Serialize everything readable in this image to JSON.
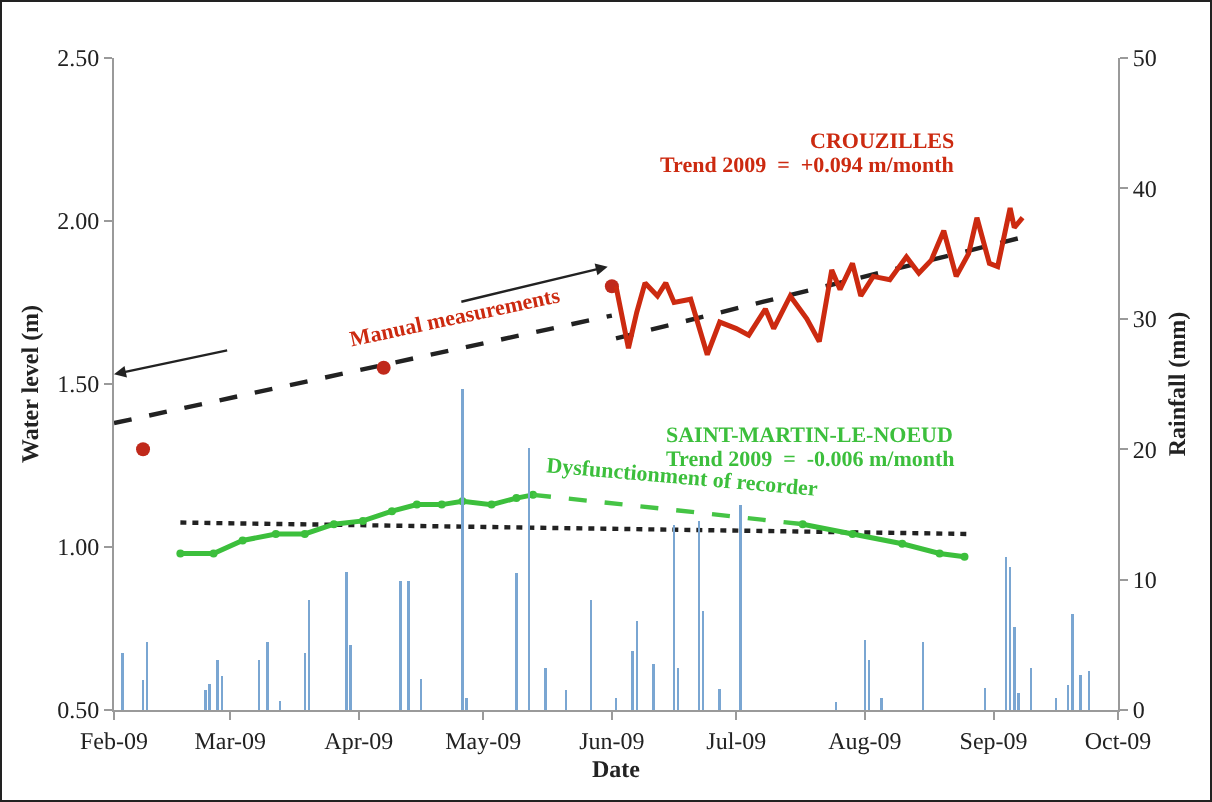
{
  "chart_data": {
    "type": "line",
    "xlabel": "Date",
    "ylabel": "Water level (m)",
    "y2label": "Rainfall (mm)",
    "xlim": [
      "2009-02-01",
      "2009-10-01"
    ],
    "xticks": [
      {
        "value": "2009-02-01",
        "label": "Feb-09"
      },
      {
        "value": "2009-03-01",
        "label": "Mar-09"
      },
      {
        "value": "2009-04-01",
        "label": "Apr-09"
      },
      {
        "value": "2009-05-01",
        "label": "May-09"
      },
      {
        "value": "2009-06-01",
        "label": "Jun-09"
      },
      {
        "value": "2009-07-01",
        "label": "Jul-09"
      },
      {
        "value": "2009-08-01",
        "label": "Aug-09"
      },
      {
        "value": "2009-09-01",
        "label": "Sep-09"
      },
      {
        "value": "2009-10-01",
        "label": "Oct-09"
      }
    ],
    "ylim": [
      0.5,
      2.5
    ],
    "yticks": [
      {
        "value": 0.5,
        "label": "0.50"
      },
      {
        "value": 1,
        "label": "1.00"
      },
      {
        "value": 1.5,
        "label": "1.50"
      },
      {
        "value": 2,
        "label": "2.00"
      },
      {
        "value": 2.5,
        "label": "2.50"
      }
    ],
    "y2lim": [
      0,
      50
    ],
    "y2ticks": [
      0,
      10,
      20,
      30,
      40,
      50
    ],
    "grid": false,
    "legend": false,
    "annotations": [
      "Manual measurements",
      "Dysfunctionment of recorder",
      "Trend 2009  =  +0.094 m/month",
      "Trend 2009  =  -0.006 m/month"
    ],
    "series": [
      {
        "type": "bar",
        "axis": "y2",
        "color": "#7aa6d2",
        "x": [
          "2009-02-03",
          "2009-02-08",
          "2009-02-09",
          "2009-02-23",
          "2009-02-24",
          "2009-02-26",
          "2009-02-27",
          "2009-03-08",
          "2009-03-10",
          "2009-03-13",
          "2009-03-19",
          "2009-03-20",
          "2009-03-29",
          "2009-03-30",
          "2009-04-11",
          "2009-04-13",
          "2009-04-16",
          "2009-04-26",
          "2009-04-27",
          "2009-05-09",
          "2009-05-12",
          "2009-05-16",
          "2009-05-21",
          "2009-05-27",
          "2009-06-02",
          "2009-06-06",
          "2009-06-07",
          "2009-06-11",
          "2009-06-16",
          "2009-06-17",
          "2009-06-22",
          "2009-06-23",
          "2009-06-27",
          "2009-07-02",
          "2009-07-25",
          "2009-08-01",
          "2009-08-02",
          "2009-08-05",
          "2009-08-15",
          "2009-08-30",
          "2009-09-04",
          "2009-09-05",
          "2009-09-06",
          "2009-09-07",
          "2009-09-10",
          "2009-09-16",
          "2009-09-19",
          "2009-09-20",
          "2009-09-22",
          "2009-09-24"
        ],
        "values": [
          4.4,
          2.3,
          5.2,
          1.5,
          2.0,
          3.8,
          2.6,
          3.8,
          5.2,
          0.7,
          4.4,
          8.4,
          10.6,
          5.0,
          9.9,
          9.9,
          2.4,
          24.6,
          0.9,
          10.5,
          20.1,
          3.2,
          1.5,
          8.4,
          0.9,
          4.5,
          6.8,
          3.5,
          14.2,
          3.2,
          14.5,
          7.6,
          1.6,
          15.7,
          0.6,
          5.4,
          3.8,
          0.9,
          5.2,
          1.7,
          11.7,
          11.0,
          6.4,
          1.3,
          3.2,
          0.9,
          1.9,
          7.4,
          2.7,
          3.0
        ]
      },
      {
        "color": "#222222",
        "line_style": "dashed",
        "x": [
          "2009-02-01",
          "2009-06-01"
        ],
        "values": [
          1.38,
          1.71
        ]
      },
      {
        "color": "#222222",
        "line_style": "dashed",
        "x": [
          "2009-06-02",
          "2009-09-08"
        ],
        "values": [
          1.64,
          1.95
        ]
      },
      {
        "color": "#222222",
        "line_style": "dotted",
        "x": [
          "2009-02-17",
          "2009-08-26"
        ],
        "values": [
          1.075,
          1.04
        ]
      },
      {
        "type": "scatter",
        "color": "#c0291b",
        "marker": "circle",
        "x": [
          "2009-02-08",
          "2009-04-07",
          "2009-06-01"
        ],
        "values": [
          1.3,
          1.55,
          1.8
        ]
      },
      {
        "name": "CROUZILLES",
        "color": "#cc2a10",
        "x": [
          "2009-06-02",
          "2009-06-05",
          "2009-06-07",
          "2009-06-09",
          "2009-06-12",
          "2009-06-14",
          "2009-06-16",
          "2009-06-20",
          "2009-06-24",
          "2009-06-27",
          "2009-07-01",
          "2009-07-04",
          "2009-07-08",
          "2009-07-10",
          "2009-07-14",
          "2009-07-18",
          "2009-07-21",
          "2009-07-24",
          "2009-07-26",
          "2009-07-29",
          "2009-07-31",
          "2009-08-03",
          "2009-08-07",
          "2009-08-11",
          "2009-08-14",
          "2009-08-17",
          "2009-08-20",
          "2009-08-23",
          "2009-08-26",
          "2009-08-28",
          "2009-08-31",
          "2009-09-02",
          "2009-09-05",
          "2009-09-06",
          "2009-09-08"
        ],
        "values": [
          1.8,
          1.61,
          1.72,
          1.81,
          1.77,
          1.81,
          1.75,
          1.76,
          1.59,
          1.69,
          1.67,
          1.65,
          1.73,
          1.67,
          1.77,
          1.7,
          1.63,
          1.85,
          1.79,
          1.87,
          1.77,
          1.83,
          1.82,
          1.89,
          1.84,
          1.88,
          1.97,
          1.83,
          1.9,
          2.01,
          1.87,
          1.86,
          2.04,
          1.98,
          2.01
        ]
      },
      {
        "name": "SAINT-MARTIN-LE-NOEUD",
        "color": "#3cbf3c",
        "marker": "circle",
        "x": [
          "2009-02-17",
          "2009-02-25",
          "2009-03-04",
          "2009-03-12",
          "2009-03-19",
          "2009-03-26",
          "2009-04-02",
          "2009-04-09",
          "2009-04-15",
          "2009-04-21",
          "2009-04-26",
          "2009-05-03",
          "2009-05-09",
          "2009-05-13",
          "2009-06-15",
          "2009-07-17",
          "2009-07-29",
          "2009-08-10",
          "2009-08-19",
          "2009-08-25"
        ],
        "values": [
          0.98,
          0.98,
          1.02,
          1.04,
          1.04,
          1.07,
          1.08,
          1.11,
          1.13,
          1.13,
          1.14,
          1.13,
          1.15,
          1.16,
          null,
          1.07,
          1.04,
          1.01,
          0.98,
          0.97
        ]
      },
      {
        "color": "#45c445",
        "line_style": "dashed",
        "x": [
          "2009-05-13",
          "2009-06-15",
          "2009-07-17"
        ],
        "values": [
          1.16,
          1.115,
          1.07
        ]
      }
    ]
  }
}
